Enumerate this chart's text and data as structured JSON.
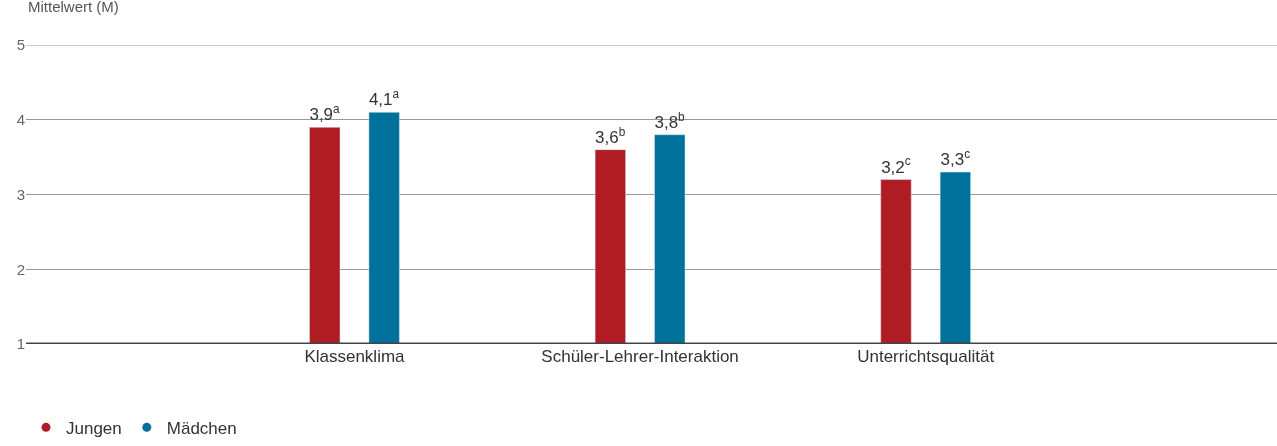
{
  "chart_data": {
    "type": "bar",
    "ylabel": "Mittelwert (M)",
    "categories": [
      "Klassenklima",
      "Schüler-Lehrer-Interaktion",
      "Unterrichtsqualität"
    ],
    "series": [
      {
        "name": "Jungen",
        "color": "#b01c24",
        "values": [
          3.9,
          3.6,
          3.2
        ],
        "value_labels": [
          "3,9$^{a}$",
          "3,6$^{b}$",
          "3,2$^{c}$"
        ]
      },
      {
        "name": "Mädchen",
        "color": "#00719a",
        "values": [
          4.1,
          3.8,
          3.3
        ],
        "value_labels": [
          "4,1$^{a}$",
          "3,8$^{b}$",
          "3,3$^{c}$"
        ]
      }
    ],
    "ylim": [
      1,
      5
    ],
    "yticks": [
      1,
      2,
      3,
      4,
      5
    ],
    "grid": "y",
    "legend": "bottom left",
    "marker": "circle"
  }
}
